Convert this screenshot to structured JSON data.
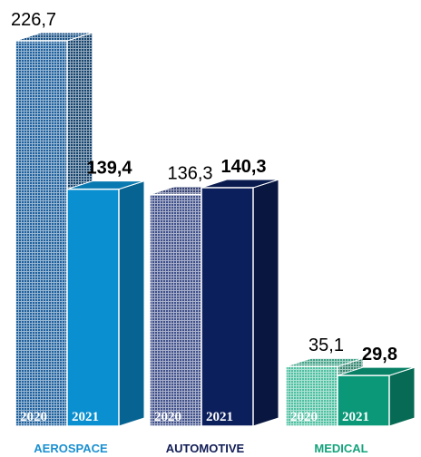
{
  "chart_data": {
    "type": "bar",
    "title": "",
    "xlabel": "",
    "ylabel": "",
    "ylim": [
      0,
      226.7
    ],
    "grid": false,
    "groups": [
      {
        "category": "AEROSPACE",
        "label_color": "#1a8fd0",
        "bars": [
          {
            "year": "2020",
            "value": 226.7,
            "label": "226,7",
            "bold": false,
            "color": "#1d5f9c",
            "pattern": true
          },
          {
            "year": "2021",
            "value": 139.4,
            "label": "139,4",
            "bold": true,
            "color": "#0a8fd0",
            "pattern": false
          }
        ]
      },
      {
        "category": "AUTOMOTIVE",
        "label_color": "#101c55",
        "bars": [
          {
            "year": "2020",
            "value": 136.3,
            "label": "136,3",
            "bold": false,
            "color": "#3f4f8a",
            "pattern": true
          },
          {
            "year": "2021",
            "value": 140.3,
            "label": "140,3",
            "bold": true,
            "color": "#0b1f5c",
            "pattern": false
          }
        ]
      },
      {
        "category": "MEDICAL",
        "label_color": "#14a37c",
        "bars": [
          {
            "year": "2020",
            "value": 35.1,
            "label": "35,1",
            "bold": false,
            "color": "#4cbfa0",
            "pattern": true
          },
          {
            "year": "2021",
            "value": 29.8,
            "label": "29,8",
            "bold": true,
            "color": "#0a9878",
            "pattern": false
          }
        ]
      }
    ]
  }
}
